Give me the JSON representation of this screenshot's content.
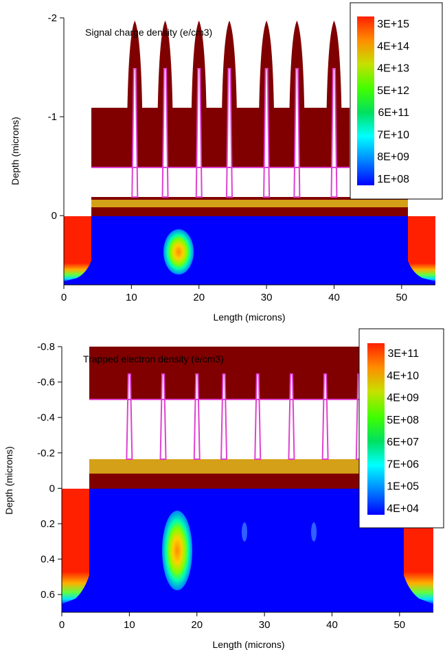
{
  "chart_data": [
    {
      "type": "heatmap",
      "title": "Signal charge density (e/cm3)",
      "xlabel": "Length (microns)",
      "ylabel": "Depth (microns)",
      "xlim": [
        0,
        55
      ],
      "ylim": [
        -2,
        0.7
      ],
      "x_ticks": [
        0,
        10,
        20,
        30,
        40,
        50
      ],
      "y_ticks": [
        -2,
        -1,
        0
      ],
      "y_tick_labels": [
        "-2",
        "-1",
        "0"
      ],
      "legend": [
        "3E+15",
        "4E+14",
        "4E+13",
        "5E+12",
        "6E+11",
        "7E+10",
        "8E+09",
        "1E+08"
      ],
      "legend_position": "top-right",
      "gate_x": [
        10.5,
        15,
        20,
        24.5,
        30,
        34.5,
        40
      ]
    },
    {
      "type": "heatmap",
      "title": "Trapped electron density (e/cm3)",
      "xlabel": "Length (microns)",
      "ylabel": "Depth (microns)",
      "xlim": [
        0,
        55
      ],
      "ylim": [
        -0.8,
        0.7
      ],
      "x_ticks": [
        0,
        10,
        20,
        30,
        40,
        50
      ],
      "y_ticks": [
        -0.8,
        -0.6,
        -0.4,
        -0.2,
        0,
        0.2,
        0.4,
        0.6
      ],
      "y_tick_labels": [
        "-0.8",
        "-0.6",
        "-0.4",
        "-0.2",
        "0",
        "0.2",
        "0.4",
        "0.6"
      ],
      "legend": [
        "3E+11",
        "4E+10",
        "4E+09",
        "5E+08",
        "6E+07",
        "7E+06",
        "1E+05",
        "4E+04"
      ],
      "legend_position": "top-right",
      "gate_x": [
        10,
        15,
        20,
        24,
        29,
        34,
        39,
        44
      ]
    }
  ],
  "colors": {
    "poly": "#800000",
    "oxide": "#d4a017",
    "gate_edge": "#e040d0",
    "substrate": "#0000ff",
    "legend_scale": [
      "#ff2000",
      "#ff8c00",
      "#c8e000",
      "#40ff00",
      "#00e060",
      "#00ffff",
      "#0080ff",
      "#0000ff"
    ]
  }
}
